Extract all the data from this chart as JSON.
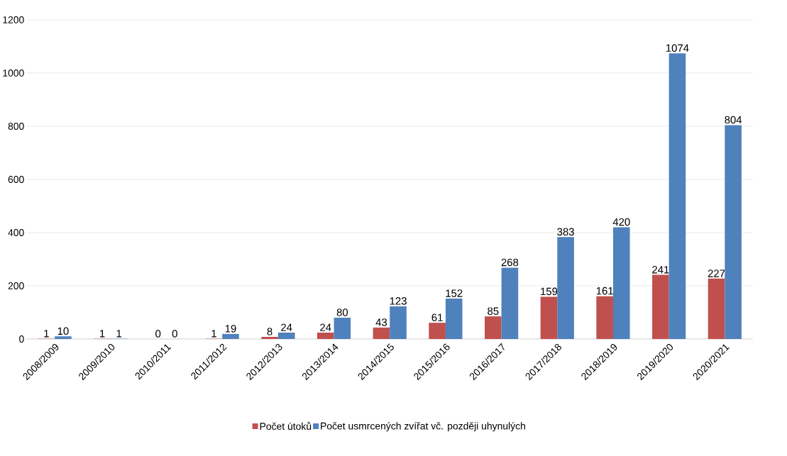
{
  "chart_data": {
    "type": "bar",
    "categories": [
      "2008/2009",
      "2009/2010",
      "2010/2011",
      "2011/2012",
      "2012/2013",
      "2013/2014",
      "2014/2015",
      "2015/2016",
      "2016/2017",
      "2017/2018",
      "2018/2019",
      "2019/2020",
      "2020/2021"
    ],
    "series": [
      {
        "name": "Počet útoků",
        "color": "#c0504d",
        "values": [
          1,
          1,
          0,
          1,
          8,
          24,
          43,
          61,
          85,
          159,
          161,
          241,
          227
        ]
      },
      {
        "name": "Počet usmrcených zvířat vč. později uhynulých",
        "color": "#4f81bd",
        "values": [
          10,
          1,
          0,
          19,
          24,
          80,
          123,
          152,
          268,
          383,
          420,
          1074,
          804
        ]
      }
    ],
    "ylim": [
      0,
      1200
    ],
    "yticks": [
      0,
      200,
      400,
      600,
      800,
      1000,
      1200
    ],
    "grid": "y",
    "legend": "bottom",
    "data_labels": true
  }
}
